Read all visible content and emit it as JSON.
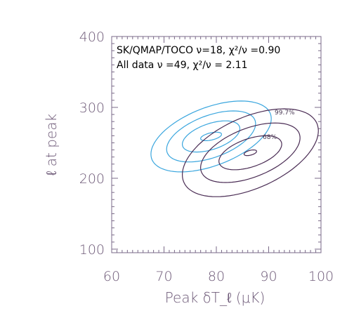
{
  "chart_data": {
    "type": "contour",
    "title": "",
    "xlabel": "Peak δT_ℓ  (μK)",
    "ylabel": "ℓ at peak",
    "xlim": [
      60,
      100
    ],
    "ylim": [
      95,
      400
    ],
    "xticks": [
      60,
      70,
      80,
      90,
      100
    ],
    "yticks": [
      100,
      200,
      300,
      400
    ],
    "grid": false,
    "legend_position": "top-left",
    "colors": {
      "frame": "#7a6a88",
      "text": "#6e5a78",
      "blue": "#3aa6de",
      "purple": "#4a2c54"
    },
    "annotations": [
      {
        "id": "sk",
        "text": "SK/QMAP/TOCO ν=18, χ²/ν =0.90",
        "color": "#6e5a78"
      },
      {
        "id": "all",
        "text": "All data ν =49, χ²/ν =  2.11",
        "color": "#3aa6de"
      }
    ],
    "contour_labels": [
      "99.7%",
      "68%"
    ],
    "series": [
      {
        "name": "All data ν =49, χ²/ν =  2.11",
        "color": "#3aa6de",
        "center": {
          "x": 79.0,
          "y": 259
        },
        "levels": [
          {
            "rx": 2.0,
            "ry": 6,
            "tilt": 0.8
          },
          {
            "rx": 5.5,
            "ry": 22,
            "tilt": 0.8
          },
          {
            "rx": 8.5,
            "ry": 36,
            "tilt": 0.8
          },
          {
            "rx": 11.5,
            "ry": 50,
            "tilt": 0.8
          }
        ]
      },
      {
        "name": "SK/QMAP/TOCO ν=18, χ²/ν =0.90",
        "color": "#4a2c54",
        "center": {
          "x": 86.5,
          "y": 236
        },
        "levels": [
          {
            "rx": 1.2,
            "ry": 4,
            "tilt": 0.6
          },
          {
            "rx": 6.0,
            "ry": 24,
            "tilt": 0.6,
            "label": "68%"
          },
          {
            "rx": 9.5,
            "ry": 42,
            "tilt": 0.6
          },
          {
            "rx": 13.0,
            "ry": 62,
            "tilt": 0.6,
            "label": "99.7%"
          }
        ]
      }
    ]
  }
}
